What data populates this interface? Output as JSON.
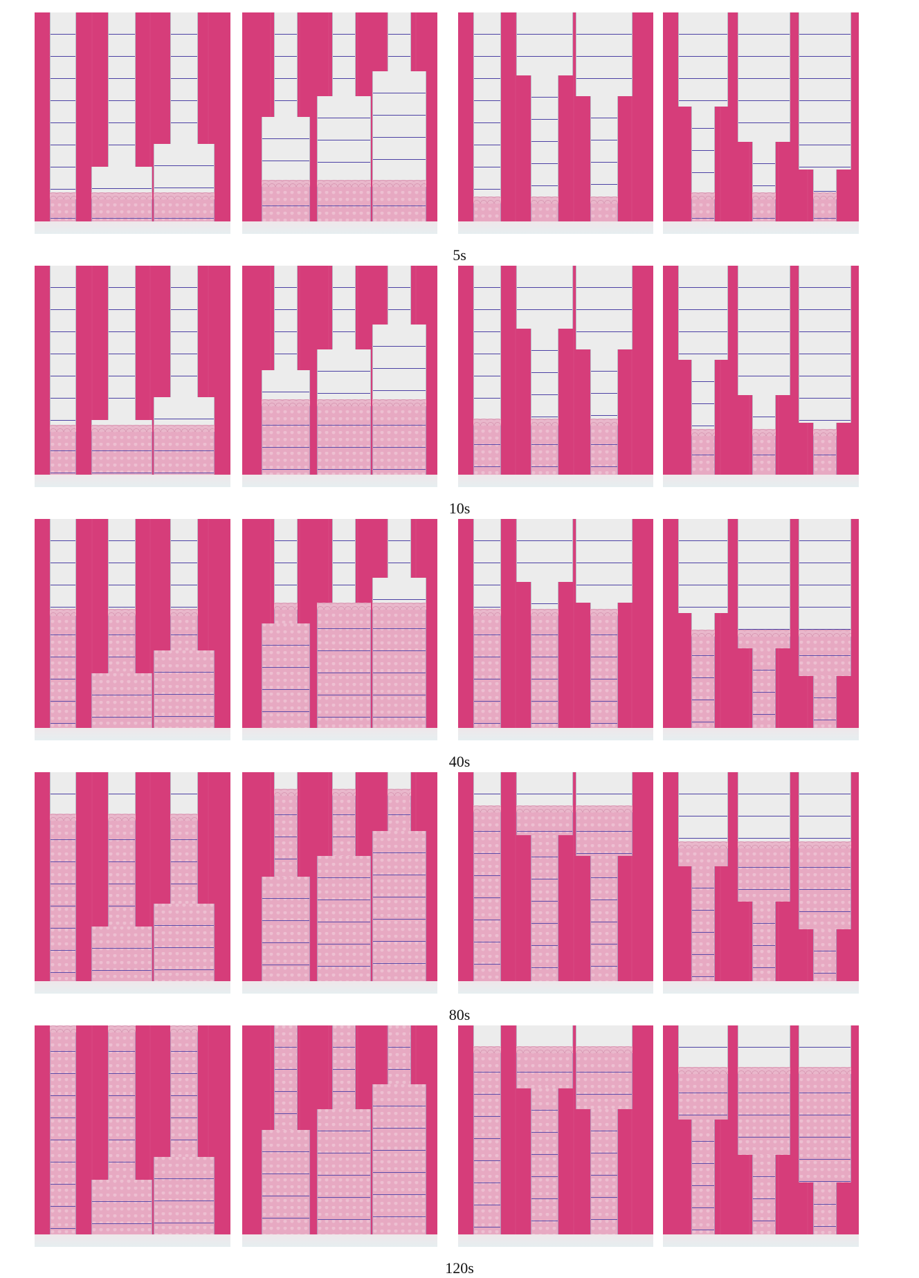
{
  "figure": {
    "time_labels": [
      "5s",
      "10s",
      "40s",
      "80s",
      "120s"
    ],
    "columns": 4,
    "colors": {
      "background": "#d63d7a",
      "paper_dry": "#ececec",
      "paper_wet": "#e8b2c8",
      "grid_line": "#4a3fa3"
    },
    "wicking_progress": [
      [
        0.12,
        0.18,
        0.1,
        0.12
      ],
      [
        0.22,
        0.34,
        0.25,
        0.2
      ],
      [
        0.55,
        0.58,
        0.55,
        0.45
      ],
      [
        0.78,
        0.9,
        0.82,
        0.65
      ],
      [
        0.98,
        1.0,
        0.88,
        0.78
      ]
    ]
  }
}
